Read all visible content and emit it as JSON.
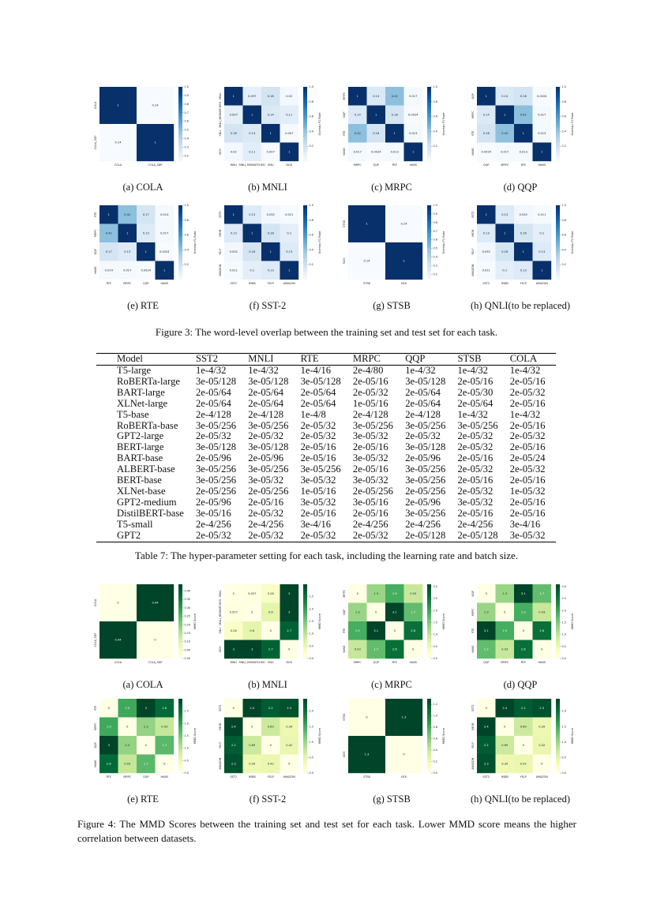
{
  "chart_data": [
    {
      "type": "heatmap",
      "caption": "(a) COLA",
      "colormap": "Blues",
      "categories": [
        "COLA",
        "COLA_SDP"
      ],
      "values": [
        [
          1,
          0.14
        ],
        [
          0.14,
          1
        ]
      ],
      "clim": [
        0.14,
        1
      ],
      "cticks": [
        0.2,
        0.3,
        0.4,
        0.5,
        0.6,
        0.7,
        0.8,
        0.9,
        {
          "value": 1,
          "label": "1.0"
        }
      ]
    },
    {
      "type": "heatmap",
      "caption": "(b) MNLI",
      "colormap": "Blues",
      "colorbar_label": "Overlap F1 Rate",
      "categories": [
        "MNLI",
        "MNLI_MISMATCHED",
        "SNLI",
        "SICK"
      ],
      "values": [
        [
          1,
          0.097,
          0.18,
          0.02
        ],
        [
          0.097,
          1,
          0.14,
          0.11
        ],
        [
          0.18,
          0.14,
          1,
          0.007
        ],
        [
          0.02,
          0.11,
          0.007,
          1
        ]
      ],
      "clim": [
        0,
        1
      ],
      "cticks": [
        0.2,
        0.4,
        0.6,
        0.8,
        {
          "value": 1,
          "label": "1.0"
        }
      ]
    },
    {
      "type": "heatmap",
      "caption": "(c) MRPC",
      "colormap": "Blues",
      "colorbar_label": "Overlap F1 Rate",
      "categories": [
        "MRPC",
        "QQP",
        "RTE",
        "HANS"
      ],
      "values": [
        [
          1,
          0.14,
          0.42,
          0.017
        ],
        [
          0.14,
          1,
          0.18,
          0.0024
        ],
        [
          0.42,
          0.18,
          1,
          0.013
        ],
        [
          0.017,
          0.0024,
          0.013,
          1
        ]
      ],
      "clim": [
        0,
        1
      ],
      "cticks": [
        0.2,
        0.4,
        0.6,
        0.8,
        {
          "value": 1,
          "label": "1.0"
        }
      ]
    },
    {
      "type": "heatmap",
      "caption": "(d) QQP",
      "colormap": "Blues",
      "colorbar_label": "Overlap F1 Rate",
      "categories": [
        "QQP",
        "MRPC",
        "RTE",
        "HANS"
      ],
      "values": [
        [
          1,
          0.14,
          0.18,
          0.0024
        ],
        [
          0.14,
          1,
          0.42,
          0.017
        ],
        [
          0.18,
          0.42,
          1,
          0.013
        ],
        [
          0.0024,
          0.017,
          0.013,
          1
        ]
      ],
      "clim": [
        0,
        1
      ],
      "cticks": [
        0.2,
        0.4,
        0.6,
        0.8,
        {
          "value": 1,
          "label": "1.0"
        }
      ]
    },
    {
      "type": "heatmap",
      "caption": "(e) RTE",
      "colormap": "Blues",
      "colorbar_label": "Overlap F1 Rate",
      "categories": [
        "RTE",
        "MRPC",
        "QQP",
        "HANS"
      ],
      "values": [
        [
          1,
          0.42,
          0.17,
          0.014
        ],
        [
          0.42,
          1,
          0.13,
          0.017
        ],
        [
          0.17,
          0.13,
          1,
          0.0024
        ],
        [
          0.014,
          0.017,
          0.0024,
          1
        ]
      ],
      "clim": [
        0,
        1
      ],
      "cticks": [
        0.2,
        0.4,
        0.6,
        0.8,
        {
          "value": 1,
          "label": "1.0"
        }
      ]
    },
    {
      "type": "heatmap",
      "caption": "(f) SST-2",
      "colormap": "Blues",
      "colorbar_label": "Overlap F1 Rate",
      "categories": [
        "SST2",
        "IMDB",
        "YELP",
        "AMAZON"
      ],
      "values": [
        [
          1,
          0.13,
          0.032,
          0.011
        ],
        [
          0.13,
          1,
          0.18,
          0.1
        ],
        [
          0.032,
          0.18,
          1,
          0.13
        ],
        [
          0.011,
          0.1,
          0.13,
          1
        ]
      ],
      "clim": [
        0,
        1
      ],
      "cticks": [
        0.2,
        0.4,
        0.6,
        0.8,
        {
          "value": 1,
          "label": "1.0"
        }
      ]
    },
    {
      "type": "heatmap",
      "caption": "(g) STSB",
      "colormap": "Blues",
      "colorbar_label": "Overlap F1 Rate",
      "categories": [
        "STSB",
        "SICK"
      ],
      "values": [
        [
          1,
          0.14
        ],
        [
          0.14,
          1
        ]
      ],
      "clim": [
        0.14,
        1
      ],
      "cticks": [
        0.2,
        0.3,
        0.4,
        0.5,
        0.6,
        0.7,
        0.8,
        0.9,
        {
          "value": 1,
          "label": "1.0"
        }
      ]
    },
    {
      "type": "heatmap",
      "caption": "(h) QNLI(to be replaced)",
      "colormap": "Blues",
      "colorbar_label": "Overlap F1 Rate",
      "categories": [
        "SST2",
        "IMDB",
        "YELP",
        "AMAZON"
      ],
      "values": [
        [
          1,
          0.13,
          0.032,
          0.011
        ],
        [
          0.13,
          1,
          0.18,
          0.1
        ],
        [
          0.032,
          0.18,
          1,
          0.13
        ],
        [
          0.011,
          0.1,
          0.13,
          1
        ]
      ],
      "clim": [
        0,
        1
      ],
      "cticks": [
        0.2,
        0.4,
        0.6,
        0.8,
        {
          "value": 1,
          "label": "1.0"
        }
      ]
    },
    {
      "type": "heatmap",
      "caption": "(a) COLA",
      "colormap": "YlGn",
      "colorbar_label": "MMD Score",
      "categories": [
        "COLA",
        "COLA_SDP"
      ],
      "values": [
        [
          0,
          0.44
        ],
        [
          0.44,
          0
        ]
      ],
      "clim": [
        0,
        0.44
      ],
      "cticks": [
        {
          "value": 0,
          "label": "0.00"
        },
        0.05,
        {
          "value": 0.1,
          "label": "0.10"
        },
        0.15,
        {
          "value": 0.2,
          "label": "0.20"
        },
        0.25,
        {
          "value": 0.3,
          "label": "0.30"
        },
        0.35,
        {
          "value": 0.4,
          "label": "0.40"
        }
      ]
    },
    {
      "type": "heatmap",
      "caption": "(b) MNLI",
      "colormap": "YlGn",
      "colorbar_label": "MMD Score",
      "categories": [
        "MNLI",
        "MNLI_MISMATCHED",
        "SNLI",
        "SICK"
      ],
      "values": [
        [
          0,
          0.057,
          0.26,
          3
        ],
        [
          0.057,
          0,
          0.6,
          3
        ],
        [
          0.26,
          0.6,
          0,
          2.7
        ],
        [
          3,
          3,
          2.7,
          0
        ]
      ],
      "clim": [
        0,
        3
      ],
      "cticks": [
        {
          "value": 0,
          "label": "0.0"
        },
        0.5,
        {
          "value": 1,
          "label": "1.0"
        },
        1.5,
        {
          "value": 2,
          "label": "2.0"
        },
        2.5
      ]
    },
    {
      "type": "heatmap",
      "caption": "(c) MRPC",
      "colormap": "YlGn",
      "colorbar_label": "MMD Score",
      "categories": [
        "MRPC",
        "QQP",
        "RTE",
        "HANS"
      ],
      "values": [
        [
          0,
          1.3,
          1.9,
          0.93
        ],
        [
          1.3,
          0,
          3.1,
          1.7
        ],
        [
          1.9,
          3.1,
          0,
          2.6
        ],
        [
          0.93,
          1.7,
          2.6,
          0
        ]
      ],
      "clim": [
        0,
        3.1
      ],
      "cticks": [
        {
          "value": 0,
          "label": "0.0"
        },
        0.5,
        {
          "value": 1,
          "label": "1.0"
        },
        1.5,
        {
          "value": 2,
          "label": "2.0"
        },
        2.5,
        {
          "value": 3,
          "label": "3.0"
        }
      ]
    },
    {
      "type": "heatmap",
      "caption": "(d) QQP",
      "colormap": "YlGn",
      "colorbar_label": "MMD Score",
      "categories": [
        "QQP",
        "MRPC",
        "RTE",
        "HANS"
      ],
      "values": [
        [
          0,
          1.3,
          3.1,
          1.7
        ],
        [
          1.3,
          0,
          1.9,
          0.93
        ],
        [
          3.1,
          1.9,
          0,
          2.6
        ],
        [
          1.7,
          0.93,
          2.6,
          0
        ]
      ],
      "clim": [
        0,
        3.1
      ],
      "cticks": [
        {
          "value": 0,
          "label": "0.0"
        },
        0.5,
        {
          "value": 1,
          "label": "1.0"
        },
        1.5,
        {
          "value": 2,
          "label": "2.0"
        },
        2.5,
        {
          "value": 3,
          "label": "3.0"
        }
      ]
    },
    {
      "type": "heatmap",
      "caption": "(e) RTE",
      "colormap": "YlGn",
      "colorbar_label": "MMD Score",
      "categories": [
        "RTE",
        "MRPC",
        "QQP",
        "HANS"
      ],
      "values": [
        [
          0,
          1.9,
          3,
          2.6
        ],
        [
          1.9,
          0,
          1.3,
          0.93
        ],
        [
          3,
          1.3,
          0,
          1.7
        ],
        [
          2.6,
          0.93,
          1.7,
          0
        ]
      ],
      "clim": [
        0,
        3
      ],
      "cticks": [
        {
          "value": 0,
          "label": "0.0"
        },
        0.5,
        {
          "value": 1,
          "label": "1.0"
        },
        1.5,
        {
          "value": 2,
          "label": "2.0"
        },
        2.5
      ]
    },
    {
      "type": "heatmap",
      "caption": "(f) SST-2",
      "colormap": "YlGn",
      "colorbar_label": "MMD Score",
      "categories": [
        "SST2",
        "IMDB",
        "YELP",
        "AMAZON"
      ],
      "values": [
        [
          0,
          2.4,
          2.2,
          2.3
        ],
        [
          2.4,
          0,
          0.69,
          0.39
        ],
        [
          2.2,
          0.69,
          0,
          0.42
        ],
        [
          2.3,
          0.39,
          0.42,
          0
        ]
      ],
      "clim": [
        0,
        2.4
      ],
      "cticks": [
        {
          "value": 0,
          "label": "0.0"
        },
        0.5,
        {
          "value": 1,
          "label": "1.0"
        },
        1.5,
        {
          "value": 2,
          "label": "2.0"
        }
      ]
    },
    {
      "type": "heatmap",
      "caption": "(g) STSB",
      "colormap": "YlGn",
      "colorbar_label": "MMD Score",
      "categories": [
        "STSB",
        "SICK"
      ],
      "values": [
        [
          0,
          1.3
        ],
        [
          1.3,
          0
        ]
      ],
      "clim": [
        0,
        1.3
      ],
      "cticks": [
        {
          "value": 0,
          "label": "0.0"
        },
        0.2,
        0.4,
        0.6,
        0.8,
        {
          "value": 1,
          "label": "1.0"
        },
        1.2
      ]
    },
    {
      "type": "heatmap",
      "caption": "(h) QNLI(to be replaced)",
      "colormap": "YlGn",
      "colorbar_label": "MMD Score",
      "categories": [
        "SST2",
        "IMDB",
        "YELP",
        "AMAZON"
      ],
      "values": [
        [
          0,
          2.4,
          2.2,
          2.3
        ],
        [
          2.4,
          0,
          0.69,
          0.39
        ],
        [
          2.2,
          0.69,
          0,
          0.42
        ],
        [
          2.3,
          0.39,
          0.42,
          0
        ]
      ],
      "clim": [
        0,
        2.4
      ],
      "cticks": [
        {
          "value": 0,
          "label": "0.0"
        },
        0.5,
        {
          "value": 1,
          "label": "1.0"
        },
        1.5,
        {
          "value": 2,
          "label": "2.0"
        }
      ]
    }
  ],
  "figure_captions": [
    "Figure 3: The word-level overlap between the training set and test set for each task.",
    "Figure 4: The MMD Scores between the training set and test set for each task. Lower MMD score means the higher correlation between datasets."
  ],
  "table": {
    "header": [
      "Model",
      "SST2",
      "MNLI",
      "RTE",
      "MRPC",
      "QQP",
      "STSB",
      "COLA"
    ],
    "rows": [
      [
        "T5-large",
        "1e-4/32",
        "1e-4/32",
        "1e-4/16",
        "2e-4/80",
        "1e-4/32",
        "1e-4/32",
        "1e-4/32"
      ],
      [
        "RoBERTa-large",
        "3e-05/128",
        "3e-05/128",
        "3e-05/128",
        "2e-05/16",
        "3e-05/128",
        "2e-05/16",
        "2e-05/16"
      ],
      [
        "BART-large",
        "2e-05/64",
        "2e-05/64",
        "2e-05/64",
        "2e-05/32",
        "2e-05/64",
        "2e-05/30",
        "2e-05/32"
      ],
      [
        "XLNet-large",
        "2e-05/64",
        "2e-05/64",
        "2e-05/64",
        "1e-05/16",
        "2e-05/64",
        "2e-05/64",
        "2e-05/16"
      ],
      [
        "T5-base",
        "2e-4/128",
        "2e-4/128",
        "1e-4/8",
        "2e-4/128",
        "2e-4/128",
        "1e-4/32",
        "1e-4/32"
      ],
      [
        "RoBERTa-base",
        "3e-05/256",
        "3e-05/256",
        "2e-05/32",
        "3e-05/256",
        "3e-05/256",
        "3e-05/256",
        "2e-05/16"
      ],
      [
        "GPT2-large",
        "2e-05/32",
        "2e-05/32",
        "2e-05/32",
        "3e-05/32",
        "2e-05/32",
        "2e-05/32",
        "2e-05/32"
      ],
      [
        "BERT-large",
        "3e-05/128",
        "3e-05/128",
        "2e-05/16",
        "2e-05/16",
        "3e-05/128",
        "2e-05/32",
        "2e-05/16"
      ],
      [
        "BART-base",
        "2e-05/96",
        "2e-05/96",
        "2e-05/16",
        "3e-05/32",
        "2e-05/96",
        "2e-05/16",
        "2e-05/24"
      ],
      [
        "ALBERT-base",
        "3e-05/256",
        "3e-05/256",
        "3e-05/256",
        "2e-05/16",
        "3e-05/256",
        "2e-05/32",
        "2e-05/32"
      ],
      [
        "BERT-base",
        "3e-05/256",
        "3e-05/32",
        "3e-05/32",
        "3e-05/32",
        "3e-05/256",
        "2e-05/16",
        "2e-05/16"
      ],
      [
        "XLNet-base",
        "2e-05/256",
        "2e-05/256",
        "1e-05/16",
        "2e-05/256",
        "2e-05/256",
        "2e-05/32",
        "1e-05/32"
      ],
      [
        "GPT2-medium",
        "2e-05/96",
        "2e-05/16",
        "3e-05/32",
        "3e-05/16",
        "2e-05/96",
        "3e-05/32",
        "2e-05/16"
      ],
      [
        "DistilBERT-base",
        "3e-05/16",
        "2e-05/32",
        "2e-05/16",
        "2e-05/16",
        "3e-05/256",
        "2e-05/16",
        "2e-05/16"
      ],
      [
        "T5-small",
        "2e-4/256",
        "2e-4/256",
        "3e-4/16",
        "2e-4/256",
        "2e-4/256",
        "2e-4/256",
        "3e-4/16"
      ],
      [
        "GPT2",
        "2e-05/32",
        "2e-05/32",
        "2e-05/32",
        "2e-05/32",
        "2e-05/128",
        "2e-05/128",
        "3e-05/32"
      ]
    ],
    "caption": "Table 7: The hyper-parameter setting for each task, including the learning rate and batch size."
  }
}
